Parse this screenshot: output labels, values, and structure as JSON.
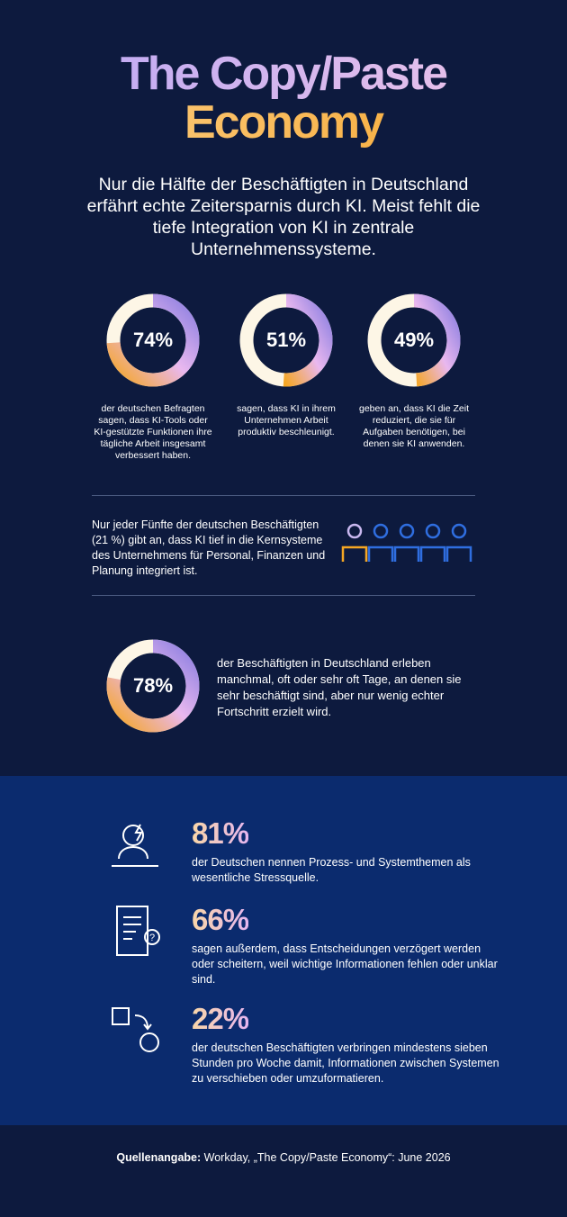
{
  "header": {
    "title_line1": "The Copy/Paste",
    "title_line2": "Economy",
    "intro": "Nur die Hälfte der Beschäftigten in Deutschland erfährt echte Zeitersparnis durch KI. Meist fehlt die tiefe Integration von KI in zentrale Unternehmenssysteme."
  },
  "donuts": [
    {
      "value": 74,
      "label": "74%",
      "text": "der deutschen Befragten sagen, dass KI-Tools oder KI-gestützte Funktionen ihre tägliche Arbeit insgesamt verbessert haben."
    },
    {
      "value": 51,
      "label": "51%",
      "text": "sagen, dass KI in ihrem Unternehmen Arbeit produktiv beschleunigt."
    },
    {
      "value": 49,
      "label": "49%",
      "text": "geben an, dass KI die Zeit reduziert, die sie für Aufgaben benötigen, bei denen sie KI anwenden."
    }
  ],
  "integration": {
    "text": "Nur jeder Fünfte der deutschen Beschäftigten (21 %) gibt an, dass KI tief in die Kernsysteme des Unternehmens für Personal, Finanzen und Planung integriert ist."
  },
  "progress": {
    "value": 78,
    "label": "78%",
    "text": "der Beschäftigten in Deutschland erleben manchmal, oft oder sehr oft Tage, an denen sie sehr beschäftigt sind, aber nur wenig echter Fortschritt erzielt wird."
  },
  "stress": [
    {
      "label": "81%",
      "text": "der Deutschen nennen Prozess- und Systemthemen als wesentliche Stressquelle."
    },
    {
      "label": "66%",
      "text": "sagen außerdem, dass Entscheidungen verzögert werden oder scheitern, weil wichtige Informationen fehlen oder unklar sind."
    },
    {
      "label": "22%",
      "text": "der deutschen Beschäftigten verbringen mindestens sieben Stunden pro Woche damit, Informationen zwischen Systemen zu verschieben oder umzuformatieren."
    }
  ],
  "source": {
    "label": "Quellenangabe:",
    "text": "Workday, „The Copy/Paste Economy“: June 2026"
  }
}
